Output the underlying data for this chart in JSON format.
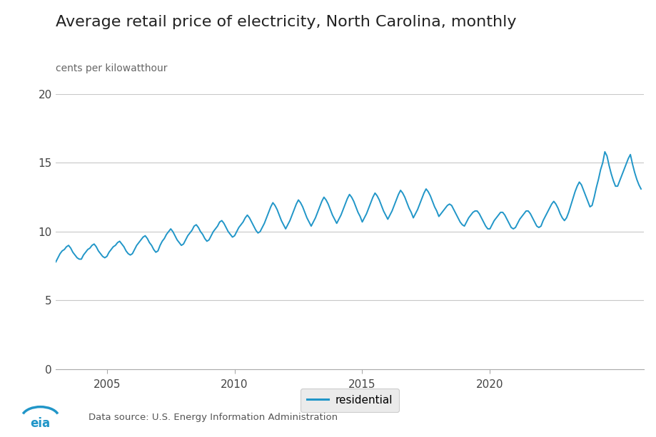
{
  "title": "Average retail price of electricity, North Carolina, monthly",
  "ylabel": "cents per kilowatthour",
  "line_color": "#2196c8",
  "line_width": 1.4,
  "bg_color": "#ffffff",
  "ylim": [
    0,
    20
  ],
  "yticks": [
    0,
    5,
    10,
    15,
    20
  ],
  "xticks": [
    2005,
    2010,
    2015,
    2020
  ],
  "legend_label": "residential",
  "source_text": "Data source: U.S. Energy Information Administration",
  "title_fontsize": 16,
  "ylabel_fontsize": 10,
  "tick_fontsize": 11,
  "values": [
    7.8,
    8.1,
    8.4,
    8.6,
    8.7,
    8.9,
    9.0,
    8.8,
    8.5,
    8.3,
    8.1,
    8.0,
    8.0,
    8.3,
    8.5,
    8.7,
    8.8,
    9.0,
    9.1,
    8.9,
    8.6,
    8.4,
    8.2,
    8.1,
    8.2,
    8.5,
    8.7,
    8.9,
    9.0,
    9.2,
    9.3,
    9.1,
    8.9,
    8.6,
    8.4,
    8.3,
    8.4,
    8.7,
    9.0,
    9.2,
    9.4,
    9.6,
    9.7,
    9.5,
    9.2,
    9.0,
    8.7,
    8.5,
    8.6,
    9.0,
    9.3,
    9.5,
    9.8,
    10.0,
    10.2,
    10.0,
    9.7,
    9.4,
    9.2,
    9.0,
    9.1,
    9.4,
    9.7,
    9.9,
    10.1,
    10.4,
    10.5,
    10.3,
    10.0,
    9.8,
    9.5,
    9.3,
    9.4,
    9.7,
    10.0,
    10.2,
    10.4,
    10.7,
    10.8,
    10.6,
    10.3,
    10.0,
    9.8,
    9.6,
    9.7,
    10.0,
    10.3,
    10.5,
    10.7,
    11.0,
    11.2,
    11.0,
    10.7,
    10.4,
    10.1,
    9.9,
    10.0,
    10.3,
    10.6,
    11.0,
    11.4,
    11.8,
    12.1,
    11.9,
    11.6,
    11.2,
    10.8,
    10.5,
    10.2,
    10.5,
    10.8,
    11.2,
    11.6,
    12.0,
    12.3,
    12.1,
    11.8,
    11.4,
    11.0,
    10.7,
    10.4,
    10.7,
    11.0,
    11.4,
    11.8,
    12.2,
    12.5,
    12.3,
    12.0,
    11.6,
    11.2,
    10.9,
    10.6,
    10.9,
    11.2,
    11.6,
    12.0,
    12.4,
    12.7,
    12.5,
    12.2,
    11.8,
    11.4,
    11.1,
    10.7,
    11.0,
    11.3,
    11.7,
    12.1,
    12.5,
    12.8,
    12.6,
    12.3,
    11.9,
    11.5,
    11.2,
    10.9,
    11.2,
    11.5,
    11.9,
    12.3,
    12.7,
    13.0,
    12.8,
    12.5,
    12.1,
    11.7,
    11.4,
    11.0,
    11.3,
    11.6,
    12.0,
    12.4,
    12.8,
    13.1,
    12.9,
    12.6,
    12.2,
    11.8,
    11.5,
    11.1,
    11.3,
    11.5,
    11.7,
    11.9,
    12.0,
    11.9,
    11.6,
    11.3,
    11.0,
    10.7,
    10.5,
    10.4,
    10.7,
    11.0,
    11.2,
    11.4,
    11.5,
    11.5,
    11.3,
    11.0,
    10.7,
    10.4,
    10.2,
    10.2,
    10.5,
    10.8,
    11.0,
    11.2,
    11.4,
    11.4,
    11.2,
    10.9,
    10.6,
    10.3,
    10.2,
    10.3,
    10.6,
    10.9,
    11.1,
    11.3,
    11.5,
    11.5,
    11.3,
    11.0,
    10.7,
    10.4,
    10.3,
    10.4,
    10.8,
    11.1,
    11.4,
    11.7,
    12.0,
    12.2,
    12.0,
    11.7,
    11.3,
    11.0,
    10.8,
    11.0,
    11.4,
    11.9,
    12.4,
    12.9,
    13.3,
    13.6,
    13.4,
    13.0,
    12.6,
    12.2,
    11.8,
    11.9,
    12.5,
    13.2,
    13.8,
    14.5,
    15.0,
    15.8,
    15.5,
    14.8,
    14.2,
    13.7,
    13.3,
    13.3,
    13.7,
    14.1,
    14.5,
    14.9,
    15.3,
    15.6,
    14.9,
    14.3,
    13.8,
    13.4,
    13.1
  ],
  "start_year": 2003,
  "start_month": 1
}
